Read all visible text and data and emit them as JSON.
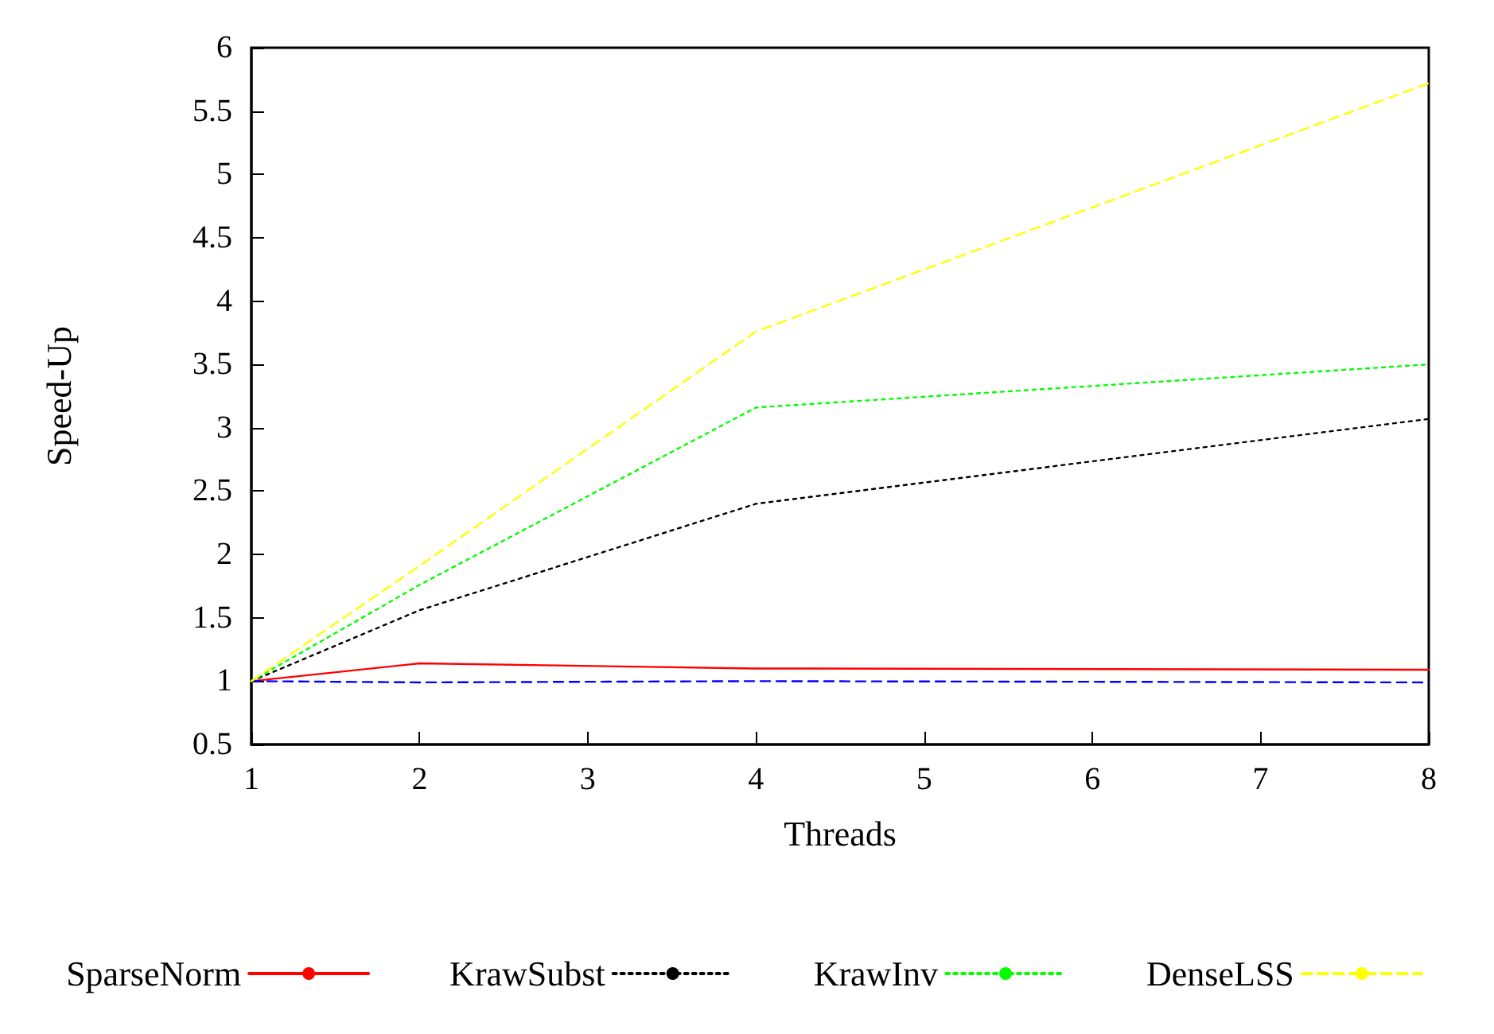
{
  "chart_data": {
    "type": "line",
    "xlabel": "Threads",
    "ylabel": "Speed-Up",
    "x": [
      1,
      2,
      4,
      8
    ],
    "xlim": [
      1,
      8
    ],
    "xticks": [
      1,
      2,
      3,
      4,
      5,
      6,
      7,
      8
    ],
    "ylim": [
      0.5,
      6
    ],
    "yticks": [
      0.5,
      1,
      1.5,
      2,
      2.5,
      3,
      3.5,
      4,
      4.5,
      5,
      5.5,
      6
    ],
    "grid": false,
    "legend": "bottom",
    "marker": "none",
    "series": [
      {
        "name": "SparseNorm",
        "color": "#ff0000",
        "line_style": "solid",
        "values": [
          1,
          1.14,
          1.1,
          1.09
        ]
      },
      {
        "color": "#0000ff",
        "line_style": "dashed",
        "values": [
          1,
          0.99,
          1,
          0.99
        ]
      },
      {
        "name": "KrawSubst",
        "color": "#000000",
        "line_style": "dotted",
        "values": [
          1,
          1.56,
          2.4,
          3.07
        ]
      },
      {
        "name": "KrawInv",
        "color": "#00ff00",
        "line_style": "dotted",
        "values": [
          1,
          1.76,
          3.16,
          3.5
        ]
      },
      {
        "name": "DenseLSS",
        "color": "#ffff00",
        "line_style": "dashed",
        "values": [
          1,
          1.91,
          3.76,
          5.72
        ]
      }
    ]
  }
}
